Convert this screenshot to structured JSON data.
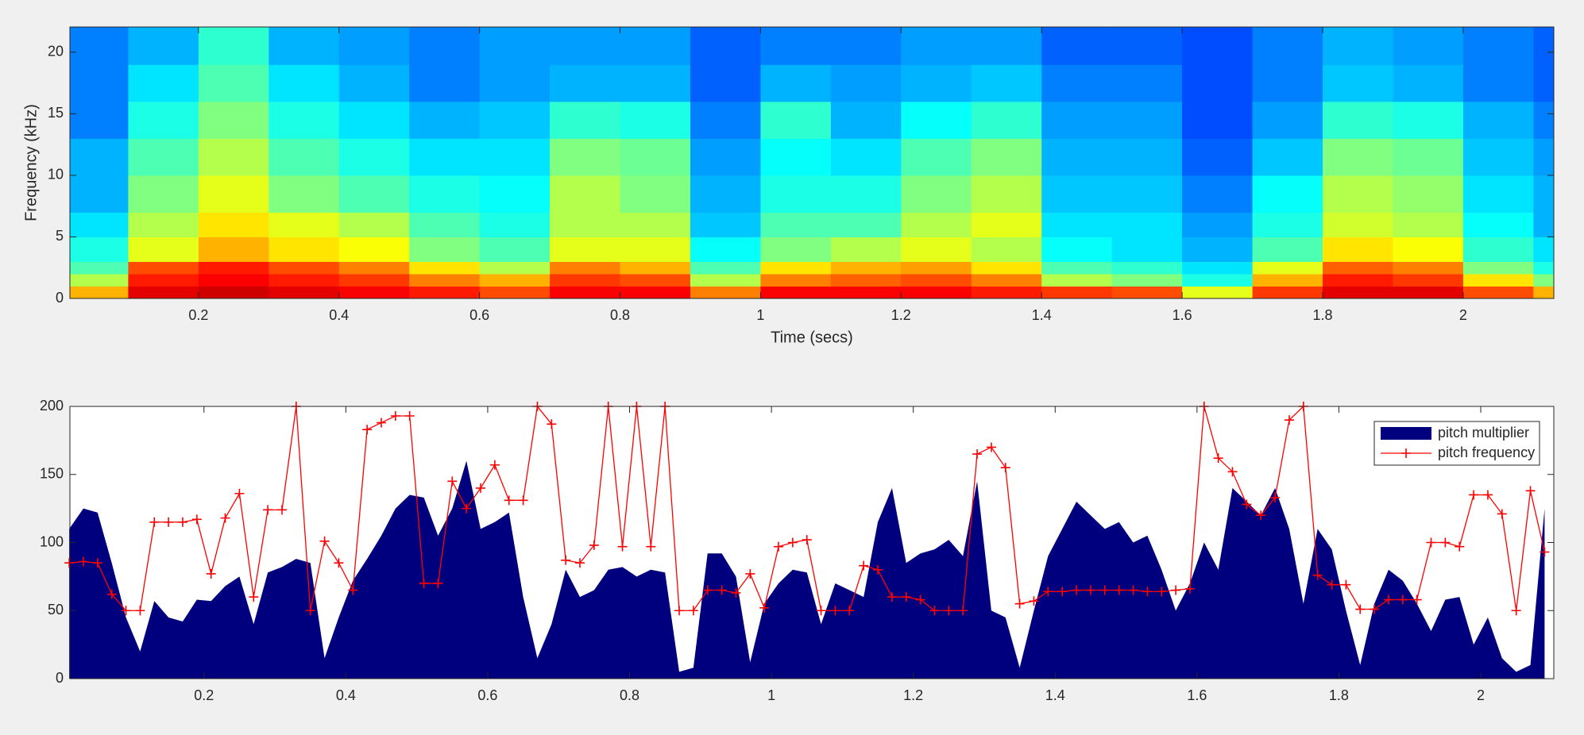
{
  "chart_data": [
    {
      "type": "heatmap",
      "xlabel": "Time (secs)",
      "ylabel": "Frequency (kHz)",
      "colormap": "jet",
      "xlim": [
        0.017,
        2.129
      ],
      "ylim": [
        0,
        22.05
      ],
      "xticks": [
        0.2,
        0.4,
        0.6,
        0.8,
        1,
        1.2,
        1.4,
        1.6,
        1.8,
        2
      ],
      "yticks": [
        0,
        5,
        10,
        15,
        20
      ],
      "xbins": [
        0,
        0.1,
        0.2,
        0.3,
        0.4,
        0.5,
        0.6,
        0.7,
        0.8,
        0.9,
        1.0,
        1.1,
        1.2,
        1.3,
        1.4,
        1.5,
        1.6,
        1.7,
        1.8,
        1.9,
        2.0,
        2.1,
        2.2
      ],
      "ybins": [
        0,
        1,
        2,
        3,
        5,
        7,
        10,
        13,
        16,
        19,
        22.05
      ],
      "z": [
        [
          0.7,
          0.55,
          0.45,
          0.4,
          0.35,
          0.3,
          0.3,
          0.25,
          0.25,
          0.25
        ],
        [
          0.9,
          0.85,
          0.8,
          0.6,
          0.55,
          0.5,
          0.45,
          0.4,
          0.35,
          0.3
        ],
        [
          0.92,
          0.88,
          0.85,
          0.7,
          0.65,
          0.6,
          0.55,
          0.5,
          0.45,
          0.42
        ],
        [
          0.9,
          0.85,
          0.8,
          0.65,
          0.6,
          0.5,
          0.45,
          0.4,
          0.35,
          0.3
        ],
        [
          0.88,
          0.82,
          0.75,
          0.62,
          0.55,
          0.45,
          0.4,
          0.35,
          0.3,
          0.28
        ],
        [
          0.85,
          0.75,
          0.65,
          0.5,
          0.45,
          0.4,
          0.35,
          0.3,
          0.25,
          0.25
        ],
        [
          0.8,
          0.7,
          0.55,
          0.45,
          0.4,
          0.38,
          0.35,
          0.32,
          0.28,
          0.28
        ],
        [
          0.88,
          0.82,
          0.75,
          0.6,
          0.55,
          0.55,
          0.5,
          0.42,
          0.3,
          0.28
        ],
        [
          0.88,
          0.8,
          0.7,
          0.6,
          0.55,
          0.5,
          0.48,
          0.4,
          0.3,
          0.28
        ],
        [
          0.75,
          0.55,
          0.45,
          0.38,
          0.32,
          0.3,
          0.28,
          0.25,
          0.22,
          0.22
        ],
        [
          0.88,
          0.75,
          0.65,
          0.5,
          0.45,
          0.4,
          0.38,
          0.42,
          0.3,
          0.25
        ],
        [
          0.88,
          0.78,
          0.7,
          0.55,
          0.45,
          0.4,
          0.35,
          0.3,
          0.28,
          0.25
        ],
        [
          0.88,
          0.8,
          0.72,
          0.6,
          0.55,
          0.5,
          0.45,
          0.38,
          0.3,
          0.28
        ],
        [
          0.85,
          0.75,
          0.65,
          0.55,
          0.6,
          0.55,
          0.5,
          0.42,
          0.32,
          0.28
        ],
        [
          0.82,
          0.55,
          0.45,
          0.38,
          0.35,
          0.32,
          0.3,
          0.28,
          0.25,
          0.22
        ],
        [
          0.8,
          0.5,
          0.42,
          0.35,
          0.35,
          0.32,
          0.3,
          0.28,
          0.25,
          0.22
        ],
        [
          0.6,
          0.4,
          0.35,
          0.3,
          0.28,
          0.25,
          0.22,
          0.2,
          0.2,
          0.2
        ],
        [
          0.82,
          0.7,
          0.6,
          0.45,
          0.4,
          0.38,
          0.32,
          0.28,
          0.25,
          0.25
        ],
        [
          0.9,
          0.85,
          0.78,
          0.65,
          0.58,
          0.55,
          0.5,
          0.42,
          0.32,
          0.3
        ],
        [
          0.9,
          0.82,
          0.75,
          0.62,
          0.55,
          0.52,
          0.48,
          0.4,
          0.3,
          0.28
        ],
        [
          0.8,
          0.65,
          0.5,
          0.42,
          0.38,
          0.35,
          0.32,
          0.3,
          0.25,
          0.25
        ],
        [
          0.7,
          0.5,
          0.4,
          0.35,
          0.3,
          0.3,
          0.28,
          0.25,
          0.22,
          0.22
        ]
      ]
    },
    {
      "type": "area_line",
      "legend": "northeast",
      "xlim": [
        0.011,
        2.103
      ],
      "ylim": [
        0,
        200
      ],
      "xticks": [
        0.2,
        0.4,
        0.6,
        0.8,
        1,
        1.2,
        1.4,
        1.6,
        1.8,
        2
      ],
      "yticks": [
        0,
        50,
        100,
        150,
        200
      ],
      "x": [
        0.01,
        0.03,
        0.05,
        0.07,
        0.09,
        0.11,
        0.13,
        0.15,
        0.17,
        0.19,
        0.21,
        0.23,
        0.25,
        0.27,
        0.29,
        0.31,
        0.33,
        0.35,
        0.37,
        0.39,
        0.41,
        0.43,
        0.45,
        0.47,
        0.49,
        0.51,
        0.53,
        0.55,
        0.57,
        0.59,
        0.61,
        0.63,
        0.65,
        0.67,
        0.69,
        0.71,
        0.73,
        0.75,
        0.77,
        0.79,
        0.81,
        0.83,
        0.85,
        0.87,
        0.89,
        0.91,
        0.93,
        0.95,
        0.97,
        0.99,
        1.01,
        1.03,
        1.05,
        1.07,
        1.09,
        1.11,
        1.13,
        1.15,
        1.17,
        1.19,
        1.21,
        1.23,
        1.25,
        1.27,
        1.29,
        1.31,
        1.33,
        1.35,
        1.37,
        1.39,
        1.41,
        1.43,
        1.45,
        1.47,
        1.49,
        1.51,
        1.53,
        1.55,
        1.57,
        1.59,
        1.61,
        1.63,
        1.65,
        1.67,
        1.69,
        1.71,
        1.73,
        1.75,
        1.77,
        1.79,
        1.81,
        1.83,
        1.85,
        1.87,
        1.89,
        1.91,
        1.93,
        1.95,
        1.97,
        1.99,
        2.01,
        2.03,
        2.05,
        2.07,
        2.09
      ],
      "series": [
        {
          "name": "pitch multiplier",
          "kind": "area",
          "color": "#00007f",
          "values": [
            110,
            125,
            122,
            85,
            45,
            20,
            57,
            45,
            42,
            58,
            57,
            68,
            75,
            40,
            78,
            82,
            88,
            85,
            15,
            45,
            72,
            88,
            105,
            125,
            135,
            133,
            105,
            125,
            160,
            110,
            115,
            122,
            60,
            15,
            40,
            80,
            60,
            65,
            80,
            82,
            75,
            80,
            78,
            5,
            8,
            92,
            92,
            75,
            12,
            55,
            70,
            80,
            78,
            40,
            70,
            65,
            60,
            115,
            140,
            85,
            92,
            95,
            102,
            90,
            145,
            50,
            45,
            8,
            50,
            90,
            110,
            130,
            120,
            110,
            115,
            100,
            105,
            80,
            50,
            70,
            100,
            80,
            140,
            130,
            120,
            140,
            110,
            55,
            110,
            95,
            50,
            10,
            55,
            80,
            72,
            55,
            35,
            58,
            60,
            25,
            45,
            15,
            5,
            10,
            125
          ]
        },
        {
          "name": "pitch frequency",
          "kind": "line",
          "marker": "+",
          "color": "#ff0000",
          "values": [
            85,
            86,
            85,
            62,
            50,
            50,
            115,
            115,
            115,
            117,
            77,
            118,
            136,
            60,
            124,
            124,
            200,
            50,
            101,
            85,
            65,
            183,
            188,
            193,
            193,
            70,
            70,
            145,
            125,
            140,
            157,
            131,
            131,
            200,
            187,
            87,
            85,
            98,
            200,
            97,
            200,
            97,
            200,
            50,
            50,
            65,
            65,
            63,
            77,
            52,
            97,
            100,
            102,
            50,
            50,
            50,
            83,
            80,
            60,
            60,
            58,
            50,
            50,
            50,
            165,
            170,
            155,
            55,
            57,
            64,
            64,
            65,
            65,
            65,
            65,
            65,
            64,
            64,
            65,
            66,
            200,
            162,
            152,
            128,
            120,
            133,
            190,
            200,
            76,
            69,
            69,
            51,
            51,
            58,
            58,
            58,
            100,
            100,
            97,
            135,
            135,
            121,
            50,
            138,
            93
          ]
        }
      ]
    }
  ]
}
